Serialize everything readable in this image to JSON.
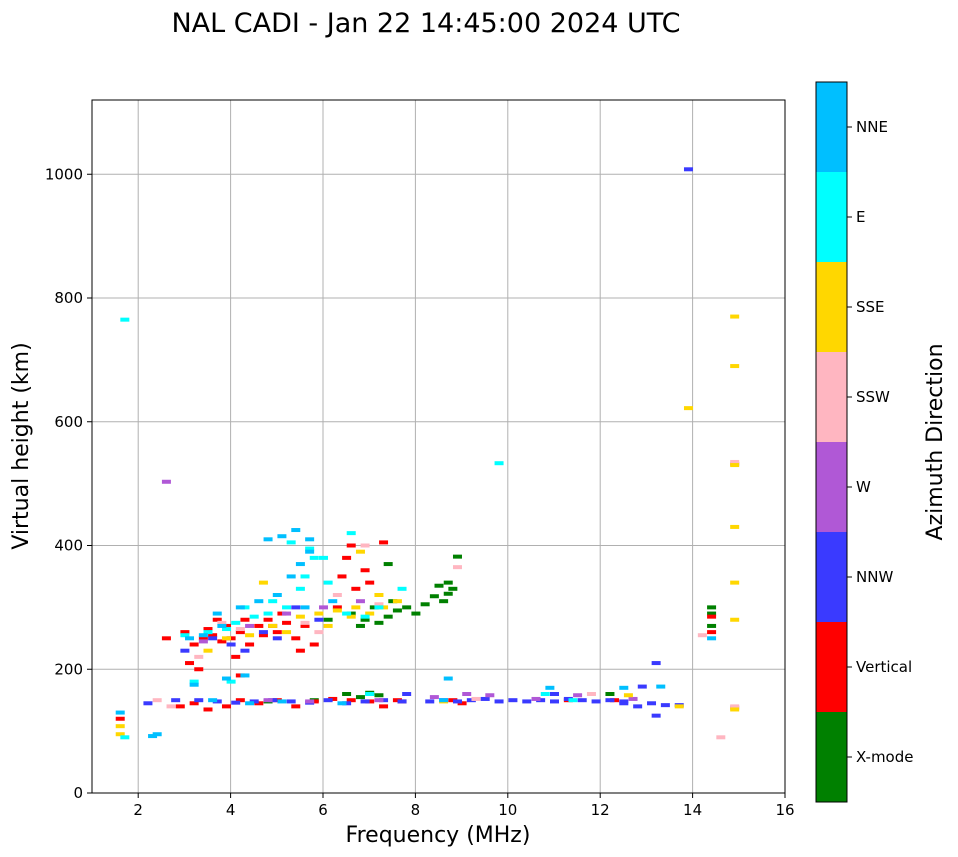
{
  "chart_data": {
    "type": "scatter",
    "title": "NAL CADI - Jan 22 14:45:00 2024 UTC",
    "xlabel": "Frequency (MHz)",
    "ylabel": "Virtual height (km)",
    "xlim": [
      1,
      16
    ],
    "ylim": [
      0,
      1120
    ],
    "xticks": [
      2,
      4,
      6,
      8,
      10,
      12,
      14,
      16
    ],
    "yticks": [
      0,
      200,
      400,
      600,
      800,
      1000
    ],
    "grid": true,
    "colorbar": {
      "title": "Azimuth Direction",
      "categories": [
        {
          "name": "X-mode",
          "color": "#008000"
        },
        {
          "name": "Vertical",
          "color": "#ff0000"
        },
        {
          "name": "NNW",
          "color": "#3a3aff"
        },
        {
          "name": "W",
          "color": "#b058d6"
        },
        {
          "name": "SSW",
          "color": "#ffb6c1"
        },
        {
          "name": "SSE",
          "color": "#ffd700"
        },
        {
          "name": "E",
          "color": "#00ffff"
        },
        {
          "name": "NNE",
          "color": "#00bfff"
        }
      ]
    },
    "series": [
      {
        "name": "X-mode",
        "points": [
          [
            6.5,
            160
          ],
          [
            6.8,
            155
          ],
          [
            7.0,
            162
          ],
          [
            7.2,
            158
          ],
          [
            6.6,
            290
          ],
          [
            6.9,
            280
          ],
          [
            7.2,
            275
          ],
          [
            7.4,
            285
          ],
          [
            7.8,
            300
          ],
          [
            7.6,
            295
          ],
          [
            8.2,
            305
          ],
          [
            8.4,
            318
          ],
          [
            8.5,
            335
          ],
          [
            8.6,
            310
          ],
          [
            8.7,
            322
          ],
          [
            8.8,
            330
          ],
          [
            8.9,
            382
          ],
          [
            8.7,
            340
          ],
          [
            6.8,
            270
          ],
          [
            7.1,
            300
          ],
          [
            7.5,
            310
          ],
          [
            8.0,
            290
          ],
          [
            5.8,
            150
          ],
          [
            4.8,
            148
          ],
          [
            14.4,
            290
          ],
          [
            14.4,
            270
          ],
          [
            14.4,
            300
          ],
          [
            7.4,
            370
          ],
          [
            6.1,
            280
          ],
          [
            12.2,
            160
          ]
        ]
      },
      {
        "name": "Vertical",
        "points": [
          [
            1.6,
            120
          ],
          [
            2.6,
            250
          ],
          [
            3.0,
            260
          ],
          [
            3.2,
            240
          ],
          [
            3.4,
            250
          ],
          [
            3.6,
            255
          ],
          [
            3.8,
            245
          ],
          [
            4.0,
            250
          ],
          [
            4.2,
            260
          ],
          [
            4.4,
            240
          ],
          [
            4.6,
            270
          ],
          [
            4.8,
            280
          ],
          [
            5.0,
            260
          ],
          [
            5.2,
            275
          ],
          [
            5.4,
            250
          ],
          [
            5.6,
            270
          ],
          [
            3.5,
            265
          ],
          [
            3.9,
            270
          ],
          [
            4.3,
            280
          ],
          [
            4.7,
            255
          ],
          [
            5.1,
            290
          ],
          [
            6.4,
            350
          ],
          [
            6.7,
            330
          ],
          [
            7.0,
            340
          ],
          [
            6.5,
            380
          ],
          [
            6.9,
            360
          ],
          [
            7.3,
            405
          ],
          [
            6.6,
            400
          ],
          [
            2.9,
            140
          ],
          [
            3.2,
            145
          ],
          [
            3.5,
            135
          ],
          [
            3.9,
            140
          ],
          [
            4.2,
            150
          ],
          [
            4.6,
            145
          ],
          [
            5.0,
            150
          ],
          [
            5.4,
            140
          ],
          [
            5.8,
            148
          ],
          [
            6.2,
            152
          ],
          [
            6.6,
            150
          ],
          [
            7.0,
            148
          ],
          [
            7.3,
            140
          ],
          [
            7.7,
            148
          ],
          [
            3.1,
            210
          ],
          [
            3.3,
            200
          ],
          [
            4.1,
            220
          ],
          [
            4.2,
            190
          ],
          [
            5.5,
            230
          ],
          [
            5.8,
            240
          ],
          [
            8.8,
            150
          ],
          [
            9.0,
            145
          ],
          [
            11.3,
            150
          ],
          [
            12.3,
            150
          ],
          [
            14.4,
            285
          ],
          [
            14.4,
            260
          ],
          [
            7.6,
            150
          ],
          [
            3.7,
            280
          ],
          [
            4.9,
            270
          ],
          [
            6.3,
            300
          ]
        ]
      },
      {
        "name": "NNW",
        "points": [
          [
            2.2,
            145
          ],
          [
            2.8,
            150
          ],
          [
            3.3,
            150
          ],
          [
            3.7,
            148
          ],
          [
            4.1,
            146
          ],
          [
            4.5,
            148
          ],
          [
            4.9,
            150
          ],
          [
            5.3,
            148
          ],
          [
            5.7,
            146
          ],
          [
            6.1,
            150
          ],
          [
            6.5,
            145
          ],
          [
            6.9,
            148
          ],
          [
            7.3,
            150
          ],
          [
            7.7,
            148
          ],
          [
            8.3,
            148
          ],
          [
            8.6,
            150
          ],
          [
            8.9,
            148
          ],
          [
            9.2,
            150
          ],
          [
            9.5,
            152
          ],
          [
            9.8,
            148
          ],
          [
            10.1,
            150
          ],
          [
            10.4,
            148
          ],
          [
            10.7,
            150
          ],
          [
            11.0,
            148
          ],
          [
            11.3,
            152
          ],
          [
            11.6,
            150
          ],
          [
            11.9,
            148
          ],
          [
            12.2,
            150
          ],
          [
            12.5,
            145
          ],
          [
            12.8,
            140
          ],
          [
            13.1,
            145
          ],
          [
            13.4,
            142
          ],
          [
            13.7,
            142
          ],
          [
            13.2,
            125
          ],
          [
            13.2,
            210
          ],
          [
            13.9,
            1008
          ],
          [
            4.3,
            230
          ],
          [
            4.7,
            260
          ],
          [
            5.0,
            250
          ],
          [
            3.6,
            250
          ],
          [
            4.0,
            240
          ],
          [
            5.4,
            300
          ],
          [
            5.9,
            280
          ],
          [
            7.8,
            160
          ],
          [
            12.9,
            172
          ],
          [
            12.5,
            148
          ],
          [
            11.0,
            160
          ],
          [
            3.0,
            230
          ]
        ]
      },
      {
        "name": "W",
        "points": [
          [
            3.4,
            245
          ],
          [
            4.4,
            270
          ],
          [
            5.2,
            290
          ],
          [
            6.0,
            300
          ],
          [
            6.8,
            310
          ],
          [
            8.4,
            155
          ],
          [
            9.1,
            160
          ],
          [
            9.6,
            158
          ],
          [
            10.6,
            152
          ],
          [
            12.7,
            152
          ],
          [
            14.9,
            138
          ],
          [
            14.9,
            532
          ],
          [
            2.6,
            503
          ],
          [
            7.2,
            150
          ],
          [
            4.8,
            150
          ],
          [
            5.7,
            148
          ],
          [
            11.5,
            158
          ]
        ]
      },
      {
        "name": "SSW",
        "points": [
          [
            2.4,
            150
          ],
          [
            2.7,
            140
          ],
          [
            3.8,
            275
          ],
          [
            4.2,
            265
          ],
          [
            5.6,
            275
          ],
          [
            6.3,
            320
          ],
          [
            7.2,
            305
          ],
          [
            8.9,
            365
          ],
          [
            9.3,
            152
          ],
          [
            11.8,
            160
          ],
          [
            14.2,
            255
          ],
          [
            14.6,
            90
          ],
          [
            14.9,
            535
          ],
          [
            14.9,
            140
          ],
          [
            3.3,
            220
          ],
          [
            5.9,
            260
          ],
          [
            6.9,
            400
          ]
        ]
      },
      {
        "name": "SSE",
        "points": [
          [
            1.6,
            95
          ],
          [
            1.6,
            108
          ],
          [
            3.5,
            230
          ],
          [
            3.9,
            250
          ],
          [
            4.4,
            255
          ],
          [
            4.9,
            270
          ],
          [
            5.5,
            285
          ],
          [
            5.9,
            290
          ],
          [
            6.3,
            295
          ],
          [
            6.6,
            285
          ],
          [
            7.0,
            290
          ],
          [
            7.3,
            300
          ],
          [
            7.6,
            310
          ],
          [
            6.7,
            300
          ],
          [
            4.7,
            340
          ],
          [
            6.8,
            390
          ],
          [
            7.2,
            320
          ],
          [
            12.6,
            158
          ],
          [
            13.7,
            140
          ],
          [
            13.9,
            622
          ],
          [
            14.9,
            770
          ],
          [
            14.9,
            690
          ],
          [
            14.9,
            530
          ],
          [
            14.9,
            430
          ],
          [
            14.9,
            340
          ],
          [
            14.9,
            280
          ],
          [
            14.9,
            135
          ],
          [
            8.6,
            148
          ],
          [
            5.2,
            260
          ],
          [
            6.1,
            270
          ]
        ]
      },
      {
        "name": "E",
        "points": [
          [
            1.7,
            90
          ],
          [
            1.7,
            765
          ],
          [
            3.0,
            255
          ],
          [
            3.5,
            260
          ],
          [
            3.9,
            265
          ],
          [
            4.1,
            275
          ],
          [
            4.5,
            285
          ],
          [
            4.8,
            290
          ],
          [
            5.2,
            300
          ],
          [
            5.5,
            330
          ],
          [
            5.6,
            350
          ],
          [
            5.8,
            380
          ],
          [
            6.1,
            340
          ],
          [
            6.5,
            290
          ],
          [
            6.9,
            285
          ],
          [
            7.2,
            300
          ],
          [
            7.7,
            330
          ],
          [
            9.8,
            533
          ],
          [
            10.8,
            160
          ],
          [
            11.4,
            150
          ],
          [
            4.3,
            300
          ],
          [
            4.9,
            310
          ],
          [
            6.0,
            380
          ],
          [
            6.6,
            420
          ],
          [
            3.2,
            180
          ],
          [
            4.0,
            180
          ],
          [
            7.0,
            160
          ],
          [
            5.3,
            405
          ],
          [
            5.7,
            395
          ]
        ]
      },
      {
        "name": "NNE",
        "points": [
          [
            1.6,
            130
          ],
          [
            2.3,
            92
          ],
          [
            2.4,
            95
          ],
          [
            3.1,
            250
          ],
          [
            3.4,
            255
          ],
          [
            3.8,
            270
          ],
          [
            4.2,
            300
          ],
          [
            4.6,
            310
          ],
          [
            5.0,
            320
          ],
          [
            5.3,
            350
          ],
          [
            5.5,
            370
          ],
          [
            5.7,
            390
          ],
          [
            4.8,
            410
          ],
          [
            5.1,
            415
          ],
          [
            5.4,
            425
          ],
          [
            5.7,
            410
          ],
          [
            3.2,
            175
          ],
          [
            3.9,
            185
          ],
          [
            4.3,
            190
          ],
          [
            3.6,
            150
          ],
          [
            4.4,
            145
          ],
          [
            5.1,
            148
          ],
          [
            6.4,
            145
          ],
          [
            8.6,
            150
          ],
          [
            8.7,
            185
          ],
          [
            10.9,
            170
          ],
          [
            12.5,
            170
          ],
          [
            13.3,
            172
          ],
          [
            14.4,
            250
          ],
          [
            5.6,
            300
          ],
          [
            6.2,
            310
          ],
          [
            3.7,
            290
          ]
        ]
      }
    ]
  }
}
